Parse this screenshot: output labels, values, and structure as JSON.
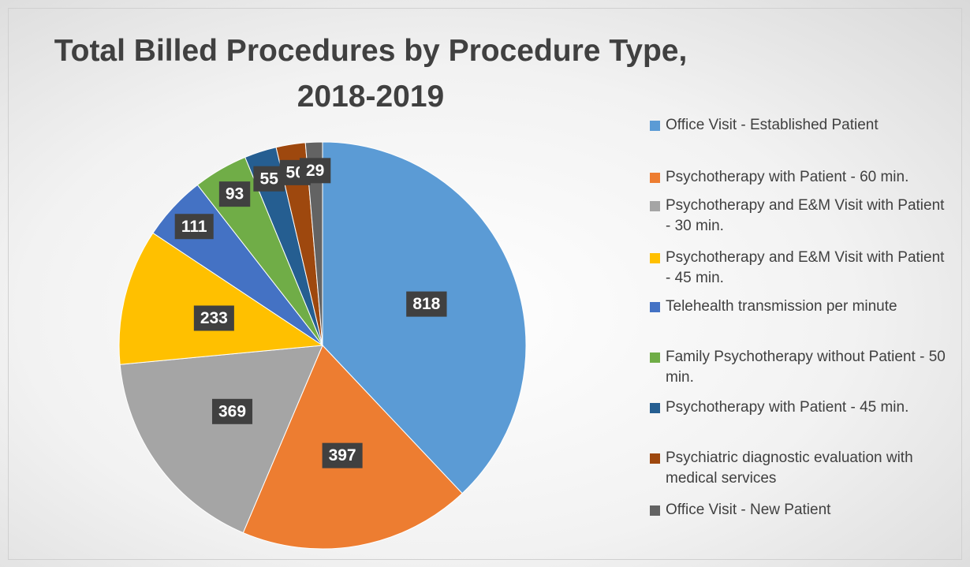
{
  "chart_data": {
    "type": "pie",
    "title": "Total Billed Procedures by Procedure Type, 2018-2019",
    "categories": [
      "Office Visit - Established Patient",
      "Psychotherapy with Patient - 60 min.",
      "Psychotherapy and E&M Visit with Patient - 30 min.",
      "Psychotherapy and E&M Visit with Patient - 45 min.",
      "Telehealth transmission per minute",
      "Family Psychotherapy without Patient - 50 min.",
      "Psychotherapy with Patient - 45 min.",
      "Psychiatric diagnostic evaluation with medical services",
      "Office Visit - New Patient"
    ],
    "values": [
      818,
      397,
      369,
      233,
      111,
      93,
      55,
      50,
      29
    ],
    "colors": [
      "#5b9bd5",
      "#ed7d31",
      "#a5a5a5",
      "#ffc000",
      "#4472c4",
      "#70ad47",
      "#255e91",
      "#9e480e",
      "#636363"
    ],
    "legend": "right"
  }
}
